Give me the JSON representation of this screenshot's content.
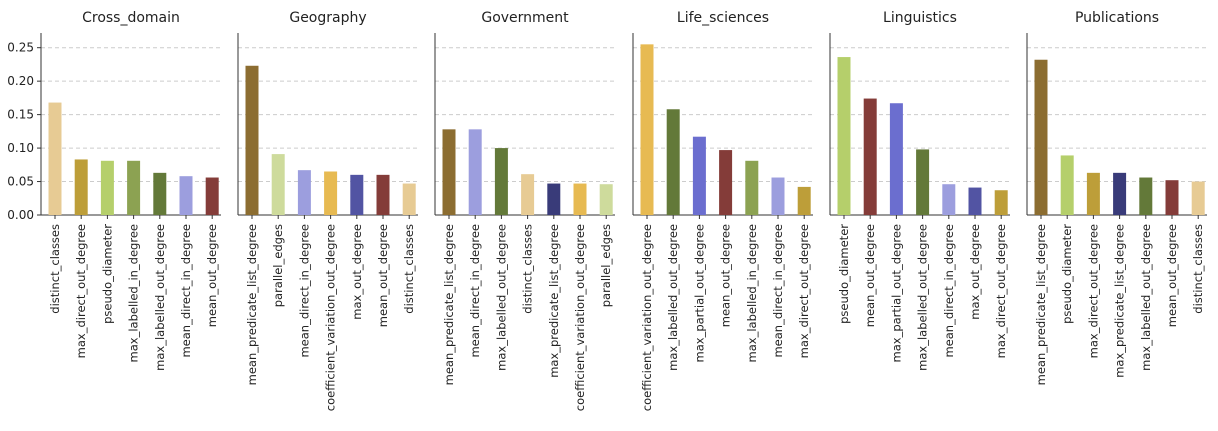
{
  "chart_data": [
    {
      "type": "bar",
      "title": "Cross_domain",
      "categories": [
        "distinct_classes",
        "max_direct_out_degree",
        "pseudo_diameter",
        "max_labelled_in_degree",
        "max_labelled_out_degree",
        "mean_direct_in_degree",
        "mean_out_degree"
      ],
      "values": [
        0.168,
        0.083,
        0.081,
        0.081,
        0.063,
        0.058,
        0.056
      ],
      "colors": [
        "#e7cb94",
        "#bd9e39",
        "#b5cf6b",
        "#8ca252",
        "#637939",
        "#9c9ede",
        "#843c39"
      ],
      "ylim": [
        0,
        0.26
      ],
      "yticks": [
        "0.00",
        "0.05",
        "0.10",
        "0.15",
        "0.20",
        "0.25"
      ],
      "grid": true
    },
    {
      "type": "bar",
      "title": "Geography",
      "categories": [
        "mean_predicate_list_degree",
        "parallel_edges",
        "mean_direct_in_degree",
        "coefficient_variation_out_degree",
        "max_out_degree",
        "mean_out_degree",
        "distinct_classes"
      ],
      "values": [
        0.223,
        0.091,
        0.067,
        0.065,
        0.06,
        0.06,
        0.047
      ],
      "colors": [
        "#8c6d31",
        "#cedb9c",
        "#9c9ede",
        "#e7ba52",
        "#5254a3",
        "#843c39",
        "#e7cb94"
      ],
      "ylim": [
        0,
        0.26
      ],
      "grid": true
    },
    {
      "type": "bar",
      "title": "Government",
      "categories": [
        "mean_predicate_list_degree",
        "mean_direct_in_degree",
        "max_labelled_out_degree",
        "distinct_classes",
        "max_predicate_list_degree",
        "coefficient_variation_out_degree",
        "parallel_edges"
      ],
      "values": [
        0.128,
        0.128,
        0.1,
        0.061,
        0.047,
        0.047,
        0.046
      ],
      "colors": [
        "#8c6d31",
        "#9c9ede",
        "#637939",
        "#e7cb94",
        "#393b79",
        "#e7ba52",
        "#cedb9c"
      ],
      "ylim": [
        0,
        0.26
      ],
      "grid": true
    },
    {
      "type": "bar",
      "title": "Life_sciences",
      "categories": [
        "coefficient_variation_out_degree",
        "max_labelled_out_degree",
        "max_partial_out_degree",
        "mean_out_degree",
        "max_labelled_in_degree",
        "mean_direct_in_degree",
        "max_direct_out_degree"
      ],
      "values": [
        0.255,
        0.158,
        0.117,
        0.097,
        0.081,
        0.056,
        0.042
      ],
      "colors": [
        "#e7ba52",
        "#637939",
        "#6b6ecf",
        "#843c39",
        "#8ca252",
        "#9c9ede",
        "#bd9e39"
      ],
      "ylim": [
        0,
        0.26
      ],
      "grid": true
    },
    {
      "type": "bar",
      "title": "Linguistics",
      "categories": [
        "pseudo_diameter",
        "mean_out_degree",
        "max_partial_out_degree",
        "max_labelled_out_degree",
        "mean_direct_in_degree",
        "max_out_degree",
        "max_direct_out_degree"
      ],
      "values": [
        0.236,
        0.174,
        0.167,
        0.098,
        0.046,
        0.041,
        0.037
      ],
      "colors": [
        "#b5cf6b",
        "#843c39",
        "#6b6ecf",
        "#637939",
        "#9c9ede",
        "#5254a3",
        "#bd9e39"
      ],
      "ylim": [
        0,
        0.26
      ],
      "grid": true
    },
    {
      "type": "bar",
      "title": "Publications",
      "categories": [
        "mean_predicate_list_degree",
        "pseudo_diameter",
        "max_direct_out_degree",
        "max_predicate_list_degree",
        "max_labelled_out_degree",
        "mean_out_degree",
        "distinct_classes"
      ],
      "values": [
        0.232,
        0.089,
        0.063,
        0.063,
        0.056,
        0.052,
        0.05
      ],
      "colors": [
        "#8c6d31",
        "#b5cf6b",
        "#bd9e39",
        "#393b79",
        "#637939",
        "#843c39",
        "#e7cb94"
      ],
      "ylim": [
        0,
        0.26
      ],
      "grid": true
    }
  ]
}
